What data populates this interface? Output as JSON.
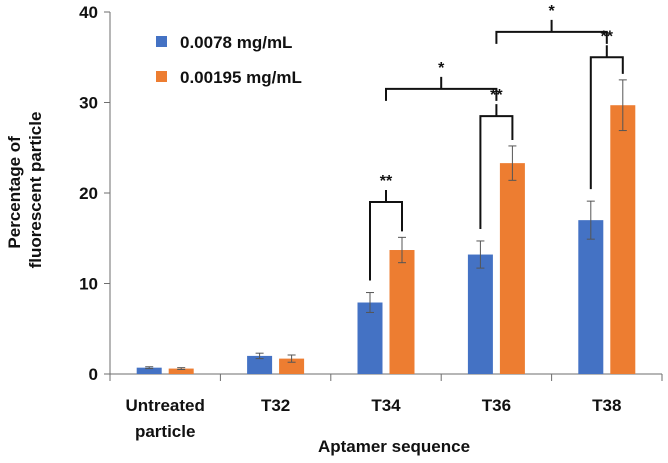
{
  "chart_data": {
    "type": "bar",
    "title": "",
    "xlabel": "Aptamer sequence",
    "ylabel_lines": [
      "Percentage of",
      "fluorescent particle"
    ],
    "ylim": [
      0,
      40
    ],
    "yticks": [
      0,
      10,
      20,
      30,
      40
    ],
    "categories": [
      [
        "Untreated",
        "particle"
      ],
      [
        "T32"
      ],
      [
        "T34"
      ],
      [
        "T36"
      ],
      [
        "T38"
      ]
    ],
    "series": [
      {
        "name": "0.0078 mg/mL",
        "color": "#4472c4",
        "values": [
          0.7,
          2.0,
          7.9,
          13.2,
          17.0
        ],
        "errors": [
          0.1,
          0.3,
          1.1,
          1.5,
          2.1
        ]
      },
      {
        "name": "0.00195 mg/mL",
        "color": "#ed7d31",
        "values": [
          0.6,
          1.7,
          13.7,
          23.3,
          29.7
        ],
        "errors": [
          0.1,
          0.4,
          1.4,
          1.9,
          2.8
        ]
      }
    ],
    "legend_position": "top-left",
    "grid": false,
    "annotations": [
      {
        "type": "within",
        "category": 2,
        "label": "**",
        "top": 19.0
      },
      {
        "type": "within",
        "category": 3,
        "label": "**",
        "top": 28.5
      },
      {
        "type": "within",
        "category": 4,
        "label": "**",
        "top": 35.0
      },
      {
        "type": "between",
        "from": 2,
        "to": 3,
        "label": "*",
        "top": 31.5
      },
      {
        "type": "between",
        "from": 3,
        "to": 4,
        "label": "*",
        "top": 37.8
      }
    ]
  }
}
